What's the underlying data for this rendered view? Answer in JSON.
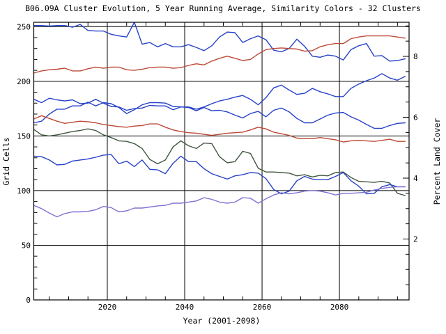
{
  "app": {
    "background": "#ffffff",
    "frame_color": "#000000",
    "text_color": "#000000"
  },
  "chart_data": {
    "type": "line",
    "title": "B06.09A Cluster Evolution, 5 Year Running Average, Similarity Colors - 32 Clusters",
    "xlabel": "Year (2001-2098)",
    "ylabel_left": "Grid Cells",
    "ylabel_right": "Percent Land Cover",
    "x_range": [
      2001,
      2098
    ],
    "y_left_range": [
      0,
      254
    ],
    "x_major_ticks": [
      2020,
      2040,
      2060,
      2080
    ],
    "x_minor_step": 5,
    "y_major_ticks": [
      0,
      50,
      100,
      150,
      200,
      250
    ],
    "y_minor_step": 10,
    "right_major_ticks": [
      2,
      4,
      6,
      8
    ],
    "right_minor_step": 0.5,
    "right_axis_max_percent": 9.1,
    "cells_per_percent": 27.85,
    "grid": "full-length black gridlines at major ticks, inward minor ticks, boxed frame",
    "legend": "none",
    "years": [
      2001,
      2003,
      2005,
      2007,
      2009,
      2011,
      2013,
      2015,
      2017,
      2019,
      2021,
      2023,
      2025,
      2027,
      2029,
      2031,
      2033,
      2035,
      2037,
      2039,
      2041,
      2043,
      2045,
      2047,
      2049,
      2051,
      2053,
      2055,
      2057,
      2059,
      2061,
      2063,
      2065,
      2067,
      2069,
      2071,
      2073,
      2075,
      2077,
      2079,
      2081,
      2083,
      2085,
      2087,
      2089,
      2091,
      2093,
      2095,
      2097
    ],
    "series": [
      {
        "name": "cluster-blue-top",
        "color": "#2742C8",
        "values": [
          251,
          251,
          250.5,
          251,
          251,
          249.5,
          252,
          246.5,
          246,
          246,
          243,
          241.5,
          240.5,
          254,
          234,
          235.5,
          231.5,
          234.5,
          231.5,
          231.5,
          233.5,
          231,
          228,
          232.5,
          240.5,
          245,
          244.5,
          235.5,
          239,
          241.5,
          238,
          228.5,
          227,
          230,
          238.5,
          232,
          223,
          222,
          224,
          223,
          219.5,
          229,
          232.5,
          234.5,
          223,
          223.5,
          218.5,
          219,
          220.5
        ]
      },
      {
        "name": "cluster-red-top",
        "color": "#BC4A36",
        "values": [
          207.5,
          209.5,
          210.5,
          211,
          212,
          209.5,
          209.5,
          211.5,
          213,
          212,
          213,
          213,
          210.5,
          210,
          211,
          212.5,
          213,
          213,
          212,
          212.5,
          214.5,
          216,
          215,
          218.5,
          221,
          223,
          221,
          219,
          220,
          225,
          229,
          230,
          230.5,
          230,
          229.5,
          227.5,
          228,
          231.5,
          233.5,
          234.5,
          234.5,
          239,
          240.5,
          241.5,
          241.5,
          241.5,
          241.5,
          240.5,
          239.5
        ]
      },
      {
        "name": "cluster-blue-riser",
        "color": "#2742C8",
        "values": [
          183.5,
          180.5,
          184.5,
          183,
          182,
          183,
          179.5,
          180,
          183.5,
          180,
          177,
          176.5,
          173.5,
          175,
          175.5,
          178,
          177.5,
          177.5,
          174,
          176.5,
          176.5,
          174.5,
          176.5,
          179.5,
          182,
          183.5,
          185.5,
          187,
          183.5,
          178.5,
          185,
          194,
          196.5,
          192,
          188,
          189,
          193.5,
          190.5,
          188.5,
          186,
          186,
          193.5,
          197.5,
          200.5,
          203,
          207,
          203,
          201,
          204.5
        ]
      },
      {
        "name": "cluster-blue-faller",
        "color": "#2742C8",
        "values": [
          162,
          163.5,
          170,
          174.5,
          174.5,
          177.5,
          177.5,
          181,
          177.5,
          180.5,
          179.5,
          176,
          170.5,
          174,
          178.5,
          180.5,
          180.5,
          180,
          177,
          176.5,
          176,
          173,
          176,
          173,
          173.5,
          172,
          169,
          166.5,
          170.5,
          172.5,
          167.5,
          173.5,
          175.5,
          172,
          166,
          162,
          162,
          165.5,
          169,
          171,
          171.5,
          167.5,
          164.5,
          160.5,
          157,
          157,
          159.5,
          161.5,
          162
        ]
      },
      {
        "name": "cluster-red-mid",
        "color": "#BC4A36",
        "values": [
          165.5,
          168.5,
          166,
          163.5,
          161.5,
          162.5,
          163.5,
          163,
          162,
          160.5,
          159.5,
          158.5,
          158,
          159,
          159.5,
          161,
          161,
          158,
          155.5,
          154,
          153,
          152.5,
          151.5,
          150.5,
          151.5,
          152.5,
          153,
          153.5,
          155.5,
          158,
          156.5,
          153.5,
          152,
          150.5,
          148,
          147.5,
          147.5,
          148.5,
          147.5,
          146.5,
          144.5,
          145.5,
          146,
          145.5,
          145,
          146,
          147,
          145,
          145
        ]
      },
      {
        "name": "cluster-green",
        "color": "#40573F",
        "values": [
          156,
          151,
          150,
          151,
          152.5,
          154,
          155,
          156.5,
          155,
          151,
          148.5,
          145.5,
          145,
          143,
          138.5,
          128.5,
          124.5,
          128,
          140,
          145.5,
          141,
          138.5,
          143.5,
          143,
          131,
          125.5,
          126.5,
          136,
          134,
          120.5,
          117,
          117,
          116.5,
          116,
          113.5,
          114.5,
          112.5,
          114,
          113.5,
          116.5,
          117,
          112,
          108.5,
          108,
          107.5,
          108.5,
          107,
          97.5,
          95.5
        ]
      },
      {
        "name": "cluster-blue-bottom",
        "color": "#2742C8",
        "values": [
          131.5,
          131,
          128,
          123.5,
          124,
          127,
          128,
          129,
          130.5,
          132.5,
          133,
          124.5,
          127,
          122,
          128,
          119.5,
          119,
          115.5,
          125,
          131.5,
          126.5,
          126.5,
          120,
          115.5,
          113,
          110.5,
          113.5,
          114.5,
          116.5,
          116,
          111,
          101,
          97,
          99.5,
          109,
          113,
          110.5,
          110,
          110,
          113,
          116.5,
          109,
          104,
          97,
          97.5,
          103.5,
          105.5,
          103.5,
          103.5
        ]
      },
      {
        "name": "cluster-purple",
        "color": "#7F72D4",
        "values": [
          86.5,
          83.5,
          79.5,
          76,
          79,
          80.5,
          80.5,
          81,
          82.5,
          85.5,
          84.5,
          80.5,
          81.5,
          84,
          84,
          85,
          86,
          86.5,
          88.5,
          88.5,
          89.5,
          90.5,
          93.5,
          92,
          89.5,
          88.5,
          89.5,
          93.5,
          93,
          88.5,
          92.5,
          96,
          98,
          97,
          98,
          99.5,
          100,
          99.5,
          98,
          96,
          97.5,
          97.5,
          98,
          98.5,
          100.5,
          102,
          103,
          103.5,
          103.5
        ]
      }
    ]
  }
}
